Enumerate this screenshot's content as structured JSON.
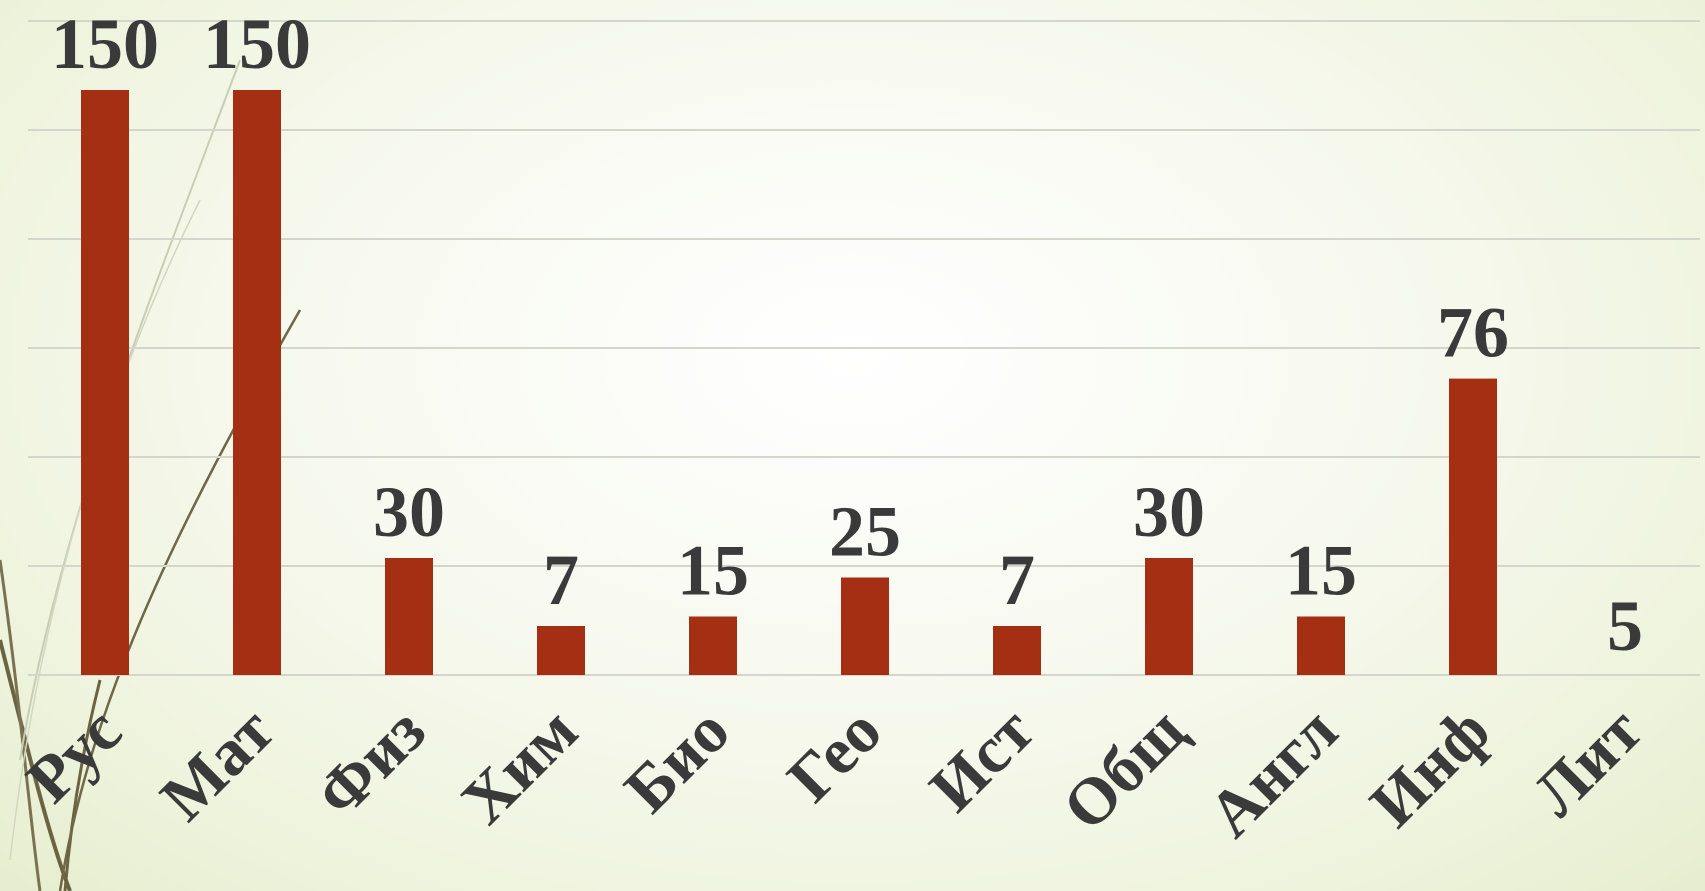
{
  "chart_data": {
    "type": "bar",
    "categories": [
      "Рус",
      "Мат",
      "Физ",
      "Хим",
      "Био",
      "Гео",
      "Ист",
      "Общ",
      "Англ",
      "Инф",
      "Лит"
    ],
    "series": [
      {
        "values": [
          150,
          150,
          30,
          7,
          15,
          25,
          7,
          30,
          15,
          76,
          5
        ]
      }
    ],
    "data_labels": [
      "150",
      "150",
      "30",
      "7",
      "15",
      "25",
      "7",
      "30",
      "15",
      "76",
      "5"
    ],
    "grid": true,
    "legend": "none",
    "colors": {
      "bar": "#a52f12",
      "label": "#3a3a3a",
      "grid": "#d4d6cc"
    }
  }
}
